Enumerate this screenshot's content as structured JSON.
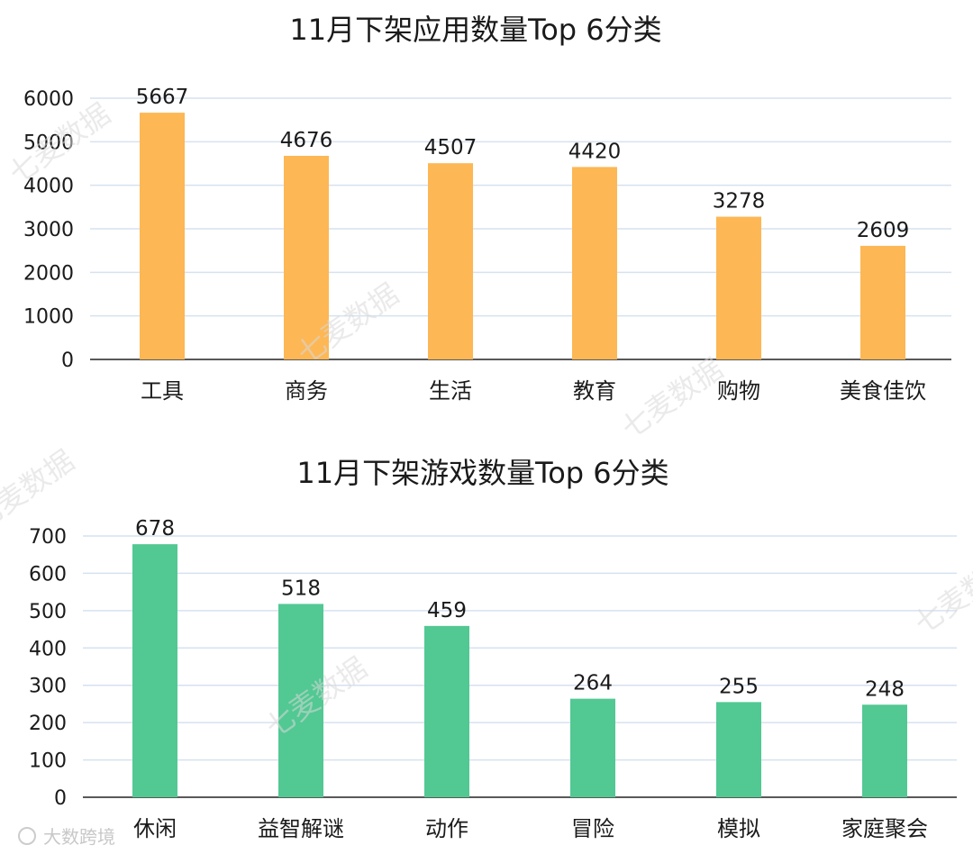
{
  "chart_data": [
    {
      "type": "bar",
      "title": "11月下架应用数量Top 6分类",
      "categories": [
        "工具",
        "商务",
        "生活",
        "教育",
        "购物",
        "美食佳饮"
      ],
      "values": [
        5667,
        4676,
        4507,
        4420,
        3278,
        2609
      ],
      "yticks": [
        0,
        1000,
        2000,
        3000,
        4000,
        5000,
        6000
      ],
      "ylim": [
        0,
        6000
      ],
      "xlabel": "",
      "ylabel": "",
      "grid": true,
      "bar_color": "#FDB754"
    },
    {
      "type": "bar",
      "title": "11月下架游戏数量Top 6分类",
      "categories": [
        "休闲",
        "益智解谜",
        "动作",
        "冒险",
        "模拟",
        "家庭聚会"
      ],
      "values": [
        678,
        518,
        459,
        264,
        255,
        248
      ],
      "yticks": [
        0,
        100,
        200,
        300,
        400,
        500,
        600,
        700
      ],
      "ylim": [
        0,
        700
      ],
      "xlabel": "",
      "ylabel": "",
      "grid": true,
      "bar_color": "#52C893"
    }
  ],
  "watermarks": {
    "qimai": "七麦数据",
    "footer": "大数跨境"
  }
}
